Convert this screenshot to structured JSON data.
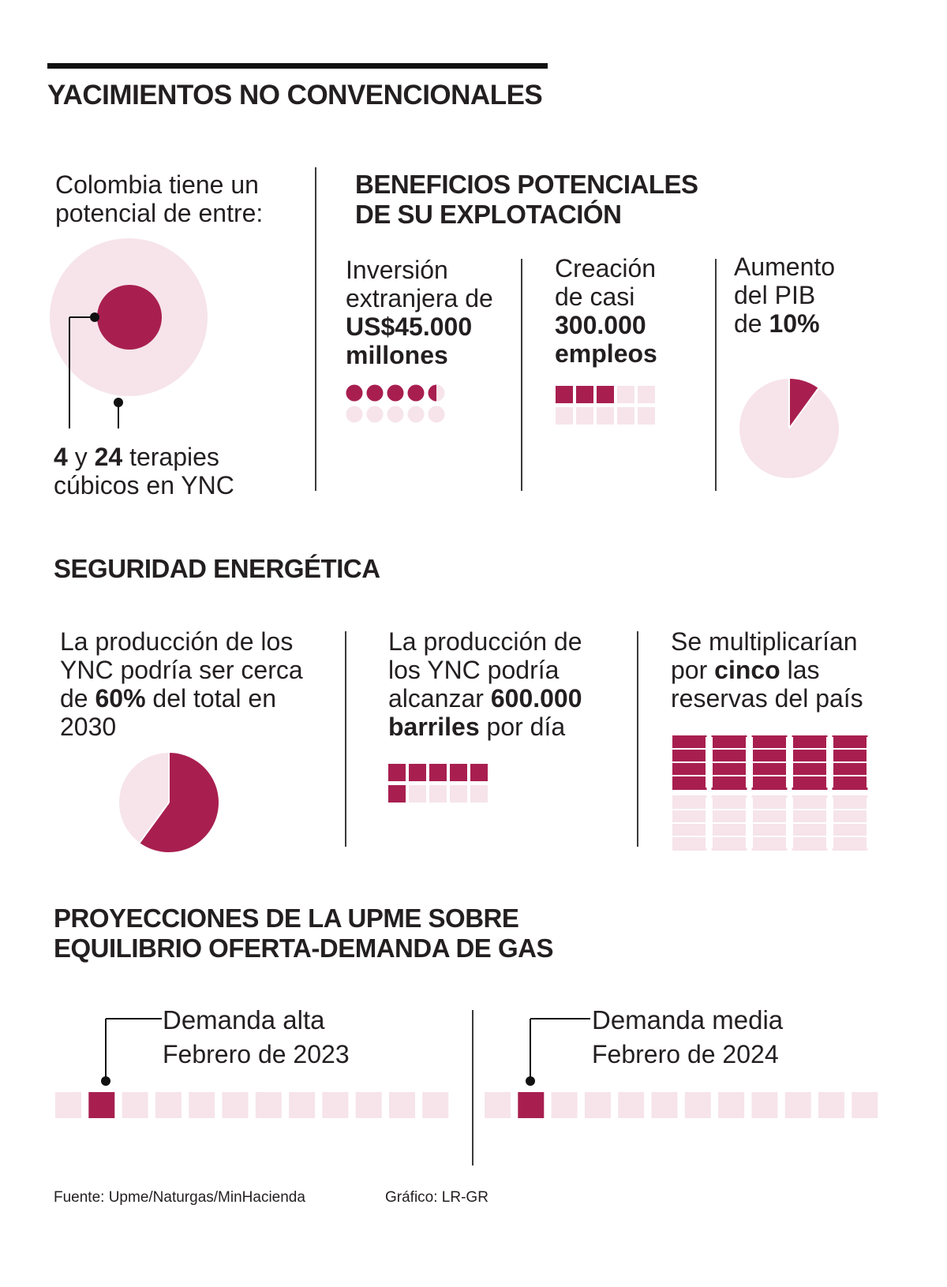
{
  "colors": {
    "accent": "#a81f4f",
    "light": "#f6e4ea",
    "text": "#231f20"
  },
  "header": {
    "title": "YACIMIENTOS NO CONVENCIONALES"
  },
  "potential": {
    "intro_line1": "Colombia tiene un",
    "intro_line2": "potencial de entre:",
    "low_value": "4",
    "connector": "y",
    "high_value": "24",
    "unit": "terapies",
    "unit_line2": "cúbicos en YNC",
    "low_ratio": 4,
    "high_ratio": 24
  },
  "benefits": {
    "title_line1": "BENEFICIOS POTENCIALES",
    "title_line2": "DE SU EXPLOTACIÓN",
    "investment": {
      "line1": "Inversión",
      "line2": "extranjera de",
      "value": "US$45.000",
      "unit": "millones",
      "dots_filled": 4.5,
      "dots_total": 10
    },
    "jobs": {
      "line1": "Creación",
      "line2": "de casi",
      "value": "300.000",
      "unit": "empleos",
      "squares_filled": 3,
      "squares_total": 10
    },
    "gdp": {
      "line1": "Aumento",
      "line2": "del PIB",
      "prefix": "de",
      "value": "10%",
      "fraction": 0.1
    }
  },
  "security": {
    "title": "SEGURIDAD ENERGÉTICA",
    "share": {
      "line1": "La producción de los",
      "line2": "YNC podría ser cerca",
      "prefix": "de",
      "value": "60%",
      "suffix": "del total en",
      "year": "2030",
      "fraction": 0.6
    },
    "production": {
      "line1": "La producción de",
      "line2": "los YNC podría",
      "prefix": "alcanzar",
      "value": "600.000",
      "unit": "barriles",
      "suffix": "por día",
      "squares_filled": 6,
      "squares_total": 10
    },
    "reserves": {
      "line1": "Se multiplicarían",
      "prefix": "por",
      "value": "cinco",
      "suffix": "las",
      "line3": "reservas del país",
      "barrels_filled": 5,
      "barrels_total": 10
    }
  },
  "projections": {
    "title_line1": "PROYECCIONES DE LA UPME SOBRE",
    "title_line2": "EQUILIBRIO OFERTA-DEMANDA DE GAS",
    "high": {
      "label": "Demanda alta",
      "date": "Febrero de 2023",
      "highlight_index": 1,
      "total": 12
    },
    "medium": {
      "label": "Demanda media",
      "date": "Febrero de 2024",
      "highlight_index": 1,
      "total": 12
    }
  },
  "footer": {
    "source": "Fuente: Upme/Naturgas/MinHacienda",
    "credit": "Gráfico: LR-GR"
  }
}
